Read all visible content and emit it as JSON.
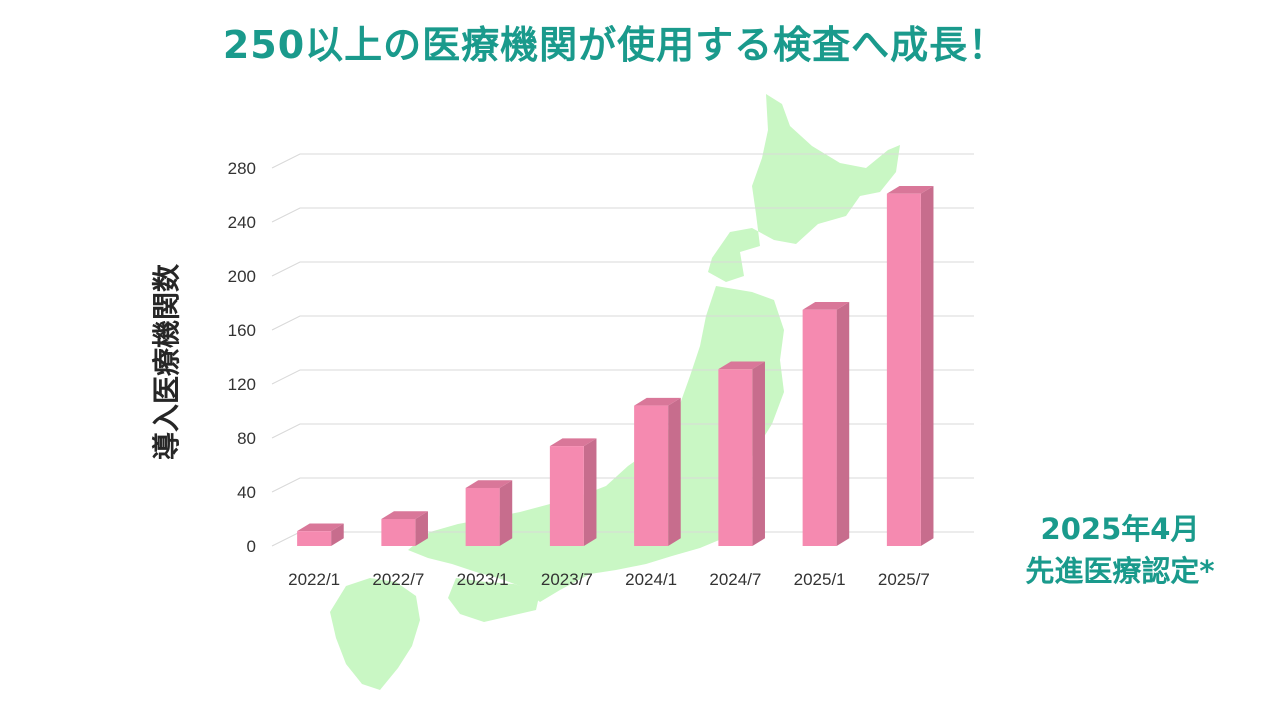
{
  "title": "250以上の医療機関が使用する検査へ成長！",
  "annotation": {
    "line1": "2025年4月",
    "line2": "先進医療認定*"
  },
  "colors": {
    "title": "#1a9a8c",
    "annotation": "#1a9a8c",
    "bar_front": "#f58ab0",
    "bar_side": "#c76d8d",
    "bar_top": "#d97799",
    "map": "#c9f7c4",
    "grid": "#d9d9d9",
    "axis_text": "#333333"
  },
  "chart_data": {
    "type": "bar",
    "categories": [
      "2022/1",
      "2022/7",
      "2023/1",
      "2023/7",
      "2024/1",
      "2024/7",
      "2025/1",
      "2025/7"
    ],
    "values": [
      11,
      20,
      43,
      74,
      104,
      131,
      175,
      261
    ],
    "xlabel": "",
    "ylabel": "導入医療機関数",
    "ylim": [
      0,
      280
    ],
    "yticks": [
      0,
      40,
      80,
      120,
      160,
      200,
      240,
      280
    ],
    "grid": true,
    "style": "3d-column",
    "background_graphic": "map-of-japan"
  }
}
